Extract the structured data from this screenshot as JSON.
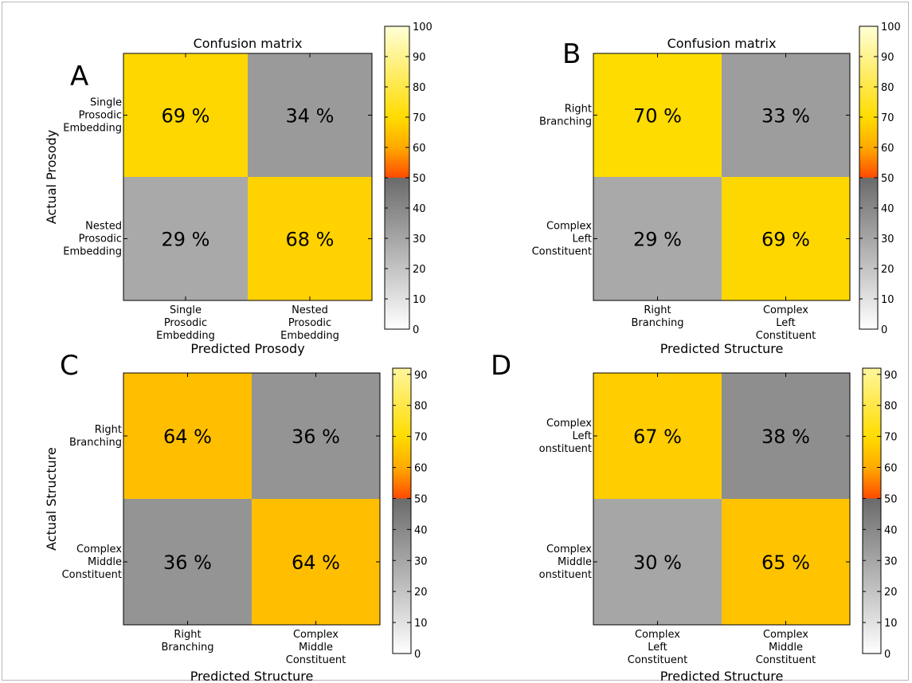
{
  "chart_data": [
    {
      "type": "heatmap",
      "panel_label": "A",
      "title": "Confusion matrix",
      "xlabel": "Predicted Prosody",
      "ylabel": "Actual Prosody",
      "x_categories": [
        [
          "Single",
          "Prosodic",
          "Embedding"
        ],
        [
          "Nested",
          "Prosodic",
          "Embedding"
        ]
      ],
      "y_categories": [
        [
          "Single",
          "Prosodic",
          "Embedding"
        ],
        [
          "Nested",
          "Prosodic",
          "Embedding"
        ]
      ],
      "values": [
        [
          69,
          34
        ],
        [
          29,
          68
        ]
      ],
      "cell_labels": [
        [
          "69 %",
          "34 %"
        ],
        [
          "29 %",
          "68 %"
        ]
      ],
      "colorbar_range": [
        0,
        100
      ],
      "colorbar_ticks": [
        0,
        10,
        20,
        30,
        40,
        50,
        60,
        70,
        80,
        90,
        100
      ]
    },
    {
      "type": "heatmap",
      "panel_label": "B",
      "title": "Confusion matrix",
      "xlabel": "Predicted Structure",
      "ylabel": "",
      "x_categories": [
        [
          "Right",
          "Branching"
        ],
        [
          "Complex",
          "Left",
          "Constituent"
        ]
      ],
      "y_categories": [
        [
          "Right",
          "Branching"
        ],
        [
          "Complex",
          "Left",
          "Constituent"
        ]
      ],
      "values": [
        [
          70,
          33
        ],
        [
          29,
          69
        ]
      ],
      "cell_labels": [
        [
          "70 %",
          "33 %"
        ],
        [
          "29 %",
          "69 %"
        ]
      ],
      "colorbar_range": [
        0,
        100
      ],
      "colorbar_ticks": [
        0,
        10,
        20,
        30,
        40,
        50,
        60,
        70,
        80,
        90,
        100
      ]
    },
    {
      "type": "heatmap",
      "panel_label": "C",
      "title": "",
      "xlabel": "Predicted Structure",
      "ylabel": "Actual Structure",
      "x_categories": [
        [
          "Right",
          "Branching"
        ],
        [
          "Complex",
          "Middle",
          "Constituent"
        ]
      ],
      "y_categories": [
        [
          "Right",
          "Branching"
        ],
        [
          "Complex",
          "Middle",
          "Constituent"
        ]
      ],
      "values": [
        [
          64,
          36
        ],
        [
          36,
          64
        ]
      ],
      "cell_labels": [
        [
          "64 %",
          "36 %"
        ],
        [
          "36 %",
          "64 %"
        ]
      ],
      "colorbar_range": [
        0,
        92
      ],
      "colorbar_ticks": [
        0,
        10,
        20,
        30,
        40,
        50,
        60,
        70,
        80,
        90
      ]
    },
    {
      "type": "heatmap",
      "panel_label": "D",
      "title": "",
      "xlabel": "Predicted Structure",
      "ylabel": "",
      "x_categories": [
        [
          "Complex",
          "Left",
          "Constituent"
        ],
        [
          "Complex",
          "Middle",
          "Constituent"
        ]
      ],
      "y_categories": [
        [
          "Complex",
          "Left",
          "onstituent"
        ],
        [
          "Complex",
          "Middle",
          "onstituent"
        ]
      ],
      "values": [
        [
          67,
          38
        ],
        [
          30,
          65
        ]
      ],
      "cell_labels": [
        [
          "67 %",
          "38 %"
        ],
        [
          "30 %",
          "65 %"
        ]
      ],
      "colorbar_range": [
        0,
        92
      ],
      "colorbar_ticks": [
        0,
        10,
        20,
        30,
        40,
        50,
        60,
        70,
        80,
        90
      ]
    }
  ],
  "colormap": {
    "stops": [
      {
        "v": 0,
        "color": "#ffffff"
      },
      {
        "v": 50,
        "color": "#6a6a6a"
      },
      {
        "v": 50.01,
        "color": "#ff4a00"
      },
      {
        "v": 60,
        "color": "#ffaa00"
      },
      {
        "v": 70,
        "color": "#ffdc00"
      },
      {
        "v": 100,
        "color": "#ffffd6"
      }
    ]
  }
}
